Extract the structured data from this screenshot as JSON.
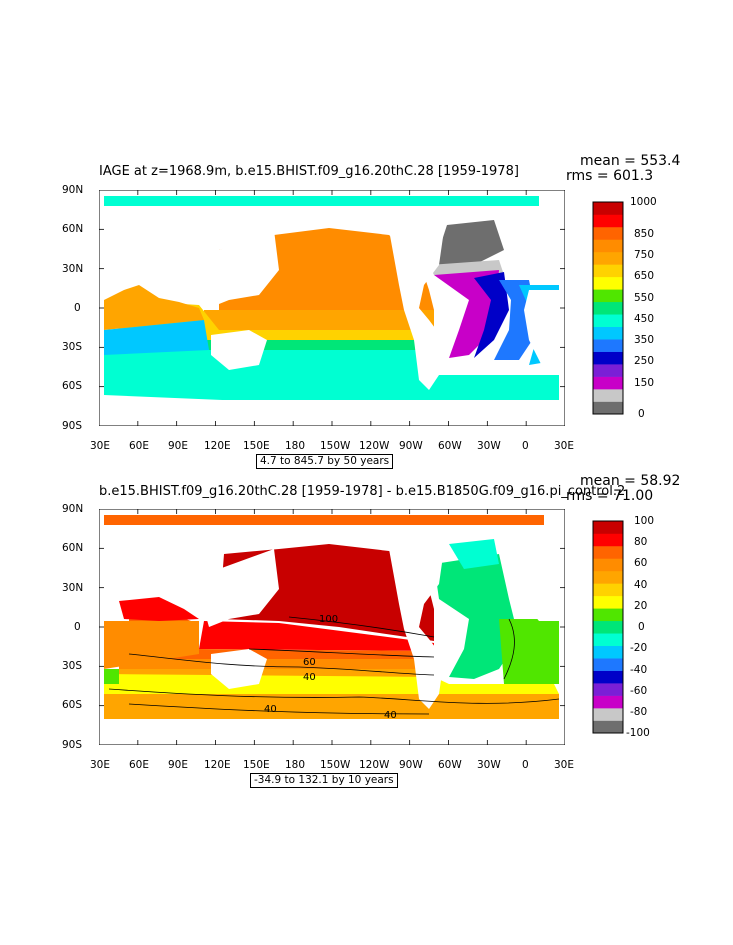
{
  "chart_data": [
    {
      "type": "heatmap",
      "title": "IAGE at z=1968.9m, b.e15.BHIST.f09_g16.20thC.28  [1959-1978]",
      "stats": {
        "mean": "mean = 553.4",
        "rms": "rms = 601.3"
      },
      "xticks": [
        "30E",
        "60E",
        "90E",
        "120E",
        "150E",
        "180",
        "150W",
        "120W",
        "90W",
        "60W",
        "30W",
        "0",
        "30E"
      ],
      "yticks": [
        "90N",
        "60N",
        "30N",
        "0",
        "30S",
        "60S",
        "90S"
      ],
      "xlim": [
        30,
        390
      ],
      "ylim": [
        -90,
        90
      ],
      "colorbar_levels": [
        "0",
        "150",
        "250",
        "350",
        "450",
        "550",
        "650",
        "750",
        "850",
        "1000"
      ],
      "colorbar_colors": [
        "#6e6e6e",
        "#c8c8c8",
        "#c800c8",
        "#7a1fd6",
        "#0000c8",
        "#1e78ff",
        "#00c8ff",
        "#00ffd2",
        "#00e678",
        "#50e600",
        "#ffff00",
        "#ffd200",
        "#ffa500",
        "#ff8c00",
        "#ff6400",
        "#ff0000",
        "#c80000"
      ],
      "range_note": "4.7 to 845.7 by 50 years"
    },
    {
      "type": "heatmap",
      "title": "b.e15.BHIST.f09_g16.20thC.28  [1959-1978]  - b.e15.B1850G.f09_g16.pi_control.2",
      "stats": {
        "mean": "mean = 58.92",
        "rms": "rms = 71.00"
      },
      "xticks": [
        "30E",
        "60E",
        "90E",
        "120E",
        "150E",
        "180",
        "150W",
        "120W",
        "90W",
        "60W",
        "30W",
        "0",
        "30E"
      ],
      "yticks": [
        "90N",
        "60N",
        "30N",
        "0",
        "30S",
        "60S",
        "90S"
      ],
      "xlim": [
        30,
        390
      ],
      "ylim": [
        -90,
        90
      ],
      "colorbar_levels": [
        "-100",
        "-80",
        "-60",
        "-40",
        "-20",
        "0",
        "20",
        "40",
        "60",
        "80",
        "100"
      ],
      "colorbar_colors": [
        "#6e6e6e",
        "#c8c8c8",
        "#c800c8",
        "#7a1fd6",
        "#0000c8",
        "#1e78ff",
        "#00c8ff",
        "#00ffd2",
        "#00e678",
        "#50e600",
        "#ffff00",
        "#ffd200",
        "#ffa500",
        "#ff8c00",
        "#ff6400",
        "#ff0000",
        "#c80000"
      ],
      "contour_labels": [
        "100",
        "60",
        "40",
        "40",
        "40"
      ],
      "range_note": "-34.9 to 132.1 by 10 years"
    }
  ],
  "colors": {
    "land": "#ffffff",
    "frame": "#000000"
  }
}
